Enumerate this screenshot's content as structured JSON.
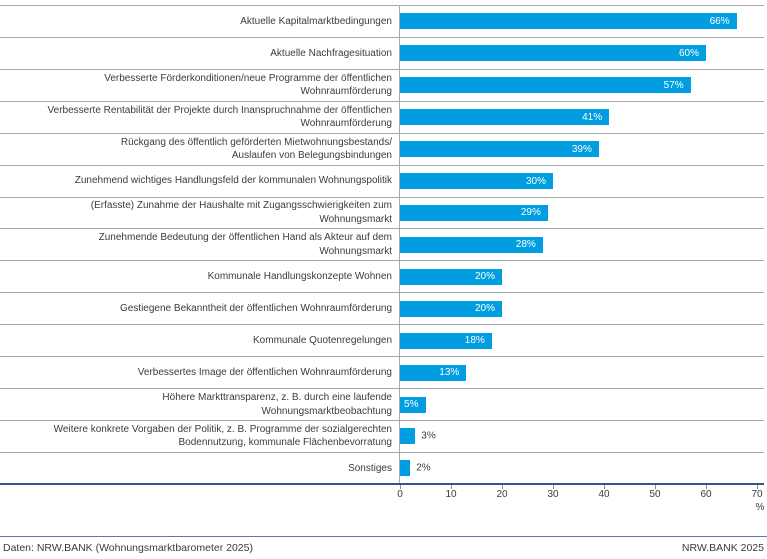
{
  "chart_data": {
    "type": "bar",
    "orientation": "horizontal",
    "title": "",
    "xlabel": "%",
    "ylabel": "",
    "xlim": [
      0,
      70
    ],
    "x_ticks": [
      0,
      10,
      20,
      30,
      40,
      50,
      60,
      70
    ],
    "grid": "horizontal-row-separators",
    "legend": "none",
    "categories": [
      "Aktuelle Kapitalmarktbedingungen",
      "Aktuelle Nachfragesituation",
      "Verbesserte Förderkonditionen/neue Programme der öffentlichen\nWohnraumförderung",
      "Verbesserte Rentabilität der Projekte durch Inanspruchnahme der öffentlichen\nWohnraumförderung",
      "Rückgang des öffentlich geförderten Mietwohnungsbestands/\nAuslaufen von Belegungsbindungen",
      "Zunehmend wichtiges Handlungsfeld der kommunalen Wohnungspolitik",
      "(Erfasste) Zunahme der Haushalte mit Zugangsschwierigkeiten zum\nWohnungsmarkt",
      "Zunehmende Bedeutung der öffentlichen Hand als Akteur auf dem\nWohnungsmarkt",
      "Kommunale Handlungskonzepte Wohnen",
      "Gestiegene Bekanntheit der öffentlichen Wohnraumförderung",
      "Kommunale Quotenregelungen",
      "Verbessertes Image der öffentlichen Wohnraumförderung",
      "Höhere Markttransparenz, z. B. durch eine laufende\nWohnungsmarktbeobachtung",
      "Weitere konkrete Vorgaben der Politik, z. B. Programme der sozialgerechten\nBodennutzung, kommunale Flächenbevorratung",
      "Sonstiges"
    ],
    "values": [
      66,
      60,
      57,
      41,
      39,
      30,
      29,
      28,
      20,
      20,
      18,
      13,
      5,
      3,
      2
    ],
    "value_labels": [
      "66%",
      "60%",
      "57%",
      "41%",
      "39%",
      "30%",
      "29%",
      "28%",
      "20%",
      "20%",
      "18%",
      "13%",
      "5%",
      "3%",
      "2%"
    ],
    "bar_color": "#009ee0",
    "axis_line_color": "#2f578c",
    "separator_color": "#a9a9a9"
  },
  "footer": {
    "source_left": "Daten: NRW.BANK (Wohnungsmarktbarometer 2025)",
    "source_right": "NRW.BANK 2025",
    "line_color": "#5f7ba3"
  }
}
